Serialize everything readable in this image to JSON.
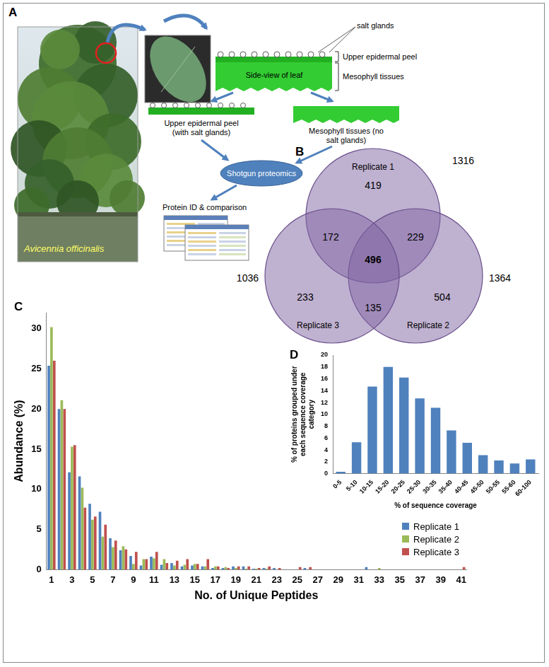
{
  "panel_a": {
    "panel_label": "A",
    "photo_caption": "Avicennia officinalis",
    "salt_glands": "salt glands",
    "side_view": "Side-view of leaf",
    "layer_upper": "Upper epidermal peel",
    "layer_lower": "Mesophyll tissues",
    "peel": "Upper epidermal peel (with salt glands)",
    "mesophyll": "Mesophyll tissues (no salt glands)",
    "method": "Shotgun proteomics",
    "result": "Protein ID & comparison"
  },
  "panel_b": {
    "panel_label": "B",
    "sets": [
      {
        "name": "Replicate 1",
        "total": 1316
      },
      {
        "name": "Replicate 2",
        "total": 1364
      },
      {
        "name": "Replicate 3",
        "total": 1036
      }
    ],
    "regions": {
      "1": 419,
      "2": 504,
      "3": 233,
      "1&2": 229,
      "1&3": 172,
      "2&3": 135,
      "1&2&3": 496
    }
  },
  "chart_data": [
    {
      "panel_label": "C",
      "type": "bar",
      "categories": [
        1,
        null,
        3,
        null,
        5,
        null,
        7,
        null,
        9,
        null,
        11,
        null,
        13,
        null,
        15,
        null,
        17,
        null,
        19,
        null,
        21,
        null,
        23,
        null,
        25,
        null,
        27,
        null,
        29,
        null,
        31,
        null,
        33,
        null,
        35,
        null,
        37,
        null,
        39,
        null,
        41
      ],
      "series": [
        {
          "name": "Replicate 1",
          "color": "#4f81bd",
          "values": [
            25.4,
            20.0,
            12.1,
            11.6,
            8.2,
            7.2,
            3.9,
            2.4,
            1.7,
            0.5,
            1.6,
            0.6,
            0.8,
            0.4,
            0.5,
            0.4,
            0.2,
            0.2,
            0.4,
            0.4,
            0.1,
            0.2,
            0.2,
            0,
            0,
            0.2,
            0,
            0,
            0,
            0,
            0,
            0.3,
            0,
            0,
            0,
            0,
            0,
            0,
            0,
            0,
            0
          ]
        },
        {
          "name": "Replicate 2",
          "color": "#9bbb59",
          "values": [
            30.2,
            21.1,
            15.3,
            10.2,
            6.2,
            4.1,
            2.8,
            2.9,
            0.7,
            1.3,
            1.4,
            1.3,
            0.5,
            0.6,
            0.7,
            0.4,
            0.4,
            0.3,
            0.2,
            0.1,
            0.1,
            0.1,
            0,
            0,
            0,
            0,
            0,
            0,
            0,
            0,
            0,
            0,
            0.2,
            0,
            0,
            0,
            0,
            0,
            0,
            0,
            0
          ]
        },
        {
          "name": "Replicate 3",
          "color": "#c0504d",
          "values": [
            26.0,
            20.0,
            15.5,
            7.7,
            6.6,
            5.6,
            3.6,
            2.5,
            2.2,
            1.3,
            2.2,
            0.8,
            1.1,
            1.3,
            0.7,
            1.3,
            0.4,
            0.2,
            0.4,
            0.4,
            0.2,
            0.4,
            0.2,
            0,
            0.3,
            0.3,
            0,
            0,
            0,
            0,
            0,
            0,
            0,
            0,
            0,
            0,
            0,
            0,
            0,
            0,
            0.3
          ]
        }
      ],
      "x_label": "No. of Unique Peptides",
      "y_label": "Abundance (%)",
      "ylim": [
        0,
        32
      ],
      "yticks": [
        0,
        5,
        10,
        15,
        20,
        25,
        30
      ],
      "grid": false,
      "legend": "lower right"
    },
    {
      "panel_label": "D",
      "type": "bar",
      "categories": [
        "0-5",
        "5-10",
        "10-15",
        "15-20",
        "20-25",
        "25-30",
        "30-35",
        "35-40",
        "40-45",
        "45-50",
        "50-55",
        "55-60",
        "60-100"
      ],
      "values": [
        0.3,
        5.3,
        14.7,
        18.0,
        16.2,
        12.7,
        11.1,
        7.3,
        5.2,
        3.1,
        2.2,
        1.7,
        2.4
      ],
      "color": "#4f81bd",
      "x_label": "% of sequence coverage",
      "y_label": "% of proteins grouped under each sequence coverage category",
      "ylim": [
        0,
        20
      ],
      "yticks": [
        0,
        2,
        4,
        6,
        8,
        10,
        12,
        14,
        16,
        18,
        20
      ],
      "grid": false
    }
  ]
}
